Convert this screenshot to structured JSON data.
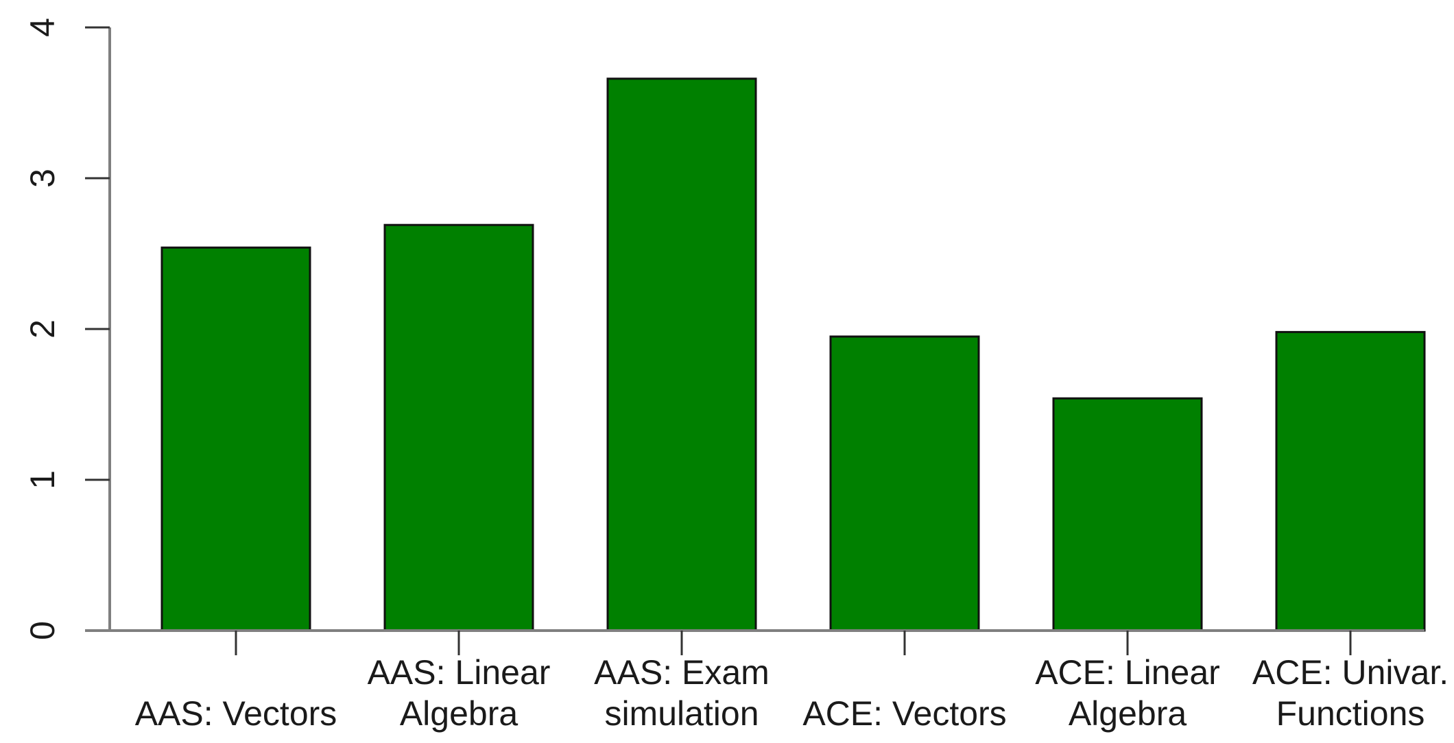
{
  "chart_data": {
    "type": "bar",
    "categories": [
      [
        "AAS: Vectors"
      ],
      [
        "AAS: Linear",
        "Algebra"
      ],
      [
        "AAS: Exam",
        "simulation"
      ],
      [
        "ACE: Vectors"
      ],
      [
        "ACE: Linear",
        "Algebra"
      ],
      [
        "ACE: Univar.",
        "Functions"
      ]
    ],
    "values": [
      2.54,
      2.69,
      3.66,
      1.95,
      1.54,
      1.98
    ],
    "title": "",
    "xlabel": "",
    "ylabel": "",
    "ylim": [
      0,
      4
    ],
    "yticks": [
      "0",
      "1",
      "2",
      "3",
      "4"
    ],
    "bar_color": "#008000",
    "grid": false,
    "legend": "none"
  }
}
